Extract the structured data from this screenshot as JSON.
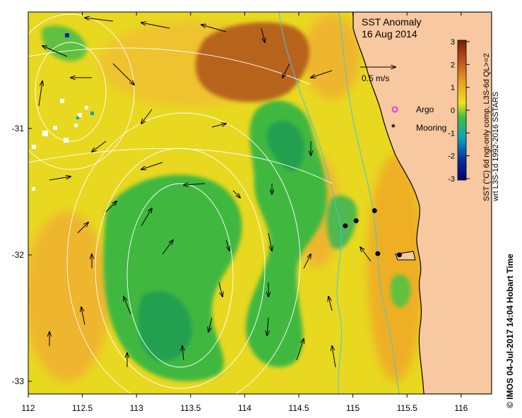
{
  "title": "SST Anomaly",
  "date": "16 Aug 2014",
  "velocity_scale_label": "0.5 m/s",
  "legend": {
    "argo_label": "Argo",
    "mooring_label": "Mooring",
    "argo_color": "#e040e0",
    "mooring_color": "#000000"
  },
  "colorbar": {
    "label_line1": "SST (°C) 6d ngt-only comp, L3S-6d  QL>=2",
    "label_line2": "wrt L3S-1d 1992-2016 SSTARS",
    "ticks": [
      "3",
      "2",
      "1",
      "0",
      "-1",
      "-2",
      "-3"
    ],
    "colors": [
      "#7a1e05",
      "#c0521c",
      "#e8a020",
      "#f0e020",
      "#40c040",
      "#10a0c0",
      "#0830a0",
      "#050070"
    ]
  },
  "credit": "© IMOS 04-Jul-2017 14:04 Hobart Time",
  "axes": {
    "x_ticks": [
      "112",
      "112.5",
      "113",
      "113.5",
      "114",
      "114.5",
      "115",
      "115.5",
      "116"
    ],
    "y_ticks": [
      "-31",
      "-32",
      "-33"
    ]
  },
  "map_colors": {
    "ocean_base": "#e8d820",
    "land": "#f8c8a0",
    "warm_patch": "#b8641a",
    "cool_green": "#40b840",
    "deep_green": "#20a050",
    "orange_tint": "#f0b030"
  },
  "moorings": [
    {
      "lon": 114.93,
      "lat": -31.77
    },
    {
      "lon": 115.03,
      "lat": -31.73
    },
    {
      "lon": 115.2,
      "lat": -31.65
    },
    {
      "lon": 115.23,
      "lat": -31.99
    },
    {
      "lon": 115.43,
      "lat": -32.0
    }
  ]
}
